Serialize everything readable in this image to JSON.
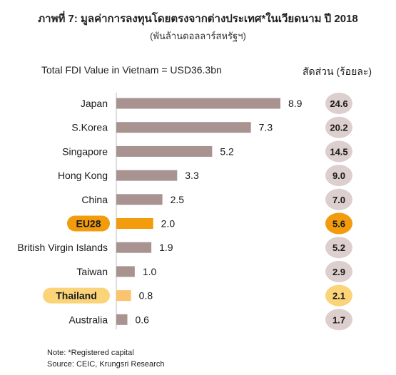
{
  "header": {
    "title": "ภาพที่ 7: มูลค่าการลงทุนโดยตรงจากต่างประเทศ*ในเวียดนาม ปี 2018",
    "subtitle": "(พันล้านดอลลาร์สหรัฐฯ)",
    "total_label": "Total FDI Value in Vietnam = USD36.3bn",
    "share_header": "สัดส่วน (ร้อยละ)"
  },
  "notes": {
    "note": "Note: *Registered capital",
    "source": "Source: CEIC, Krungsri Research"
  },
  "colors": {
    "bar_default": "#a89391",
    "bar_eu": "#f29b0c",
    "bar_thailand": "#fac46e",
    "share_default": "#dccfcd",
    "share_eu": "#f29b0c",
    "share_thailand": "#fbd47a",
    "label_eu_bg": "#f29b0c",
    "label_thailand_bg": "#fbd47a"
  },
  "chart_data": {
    "type": "bar",
    "orientation": "horizontal",
    "categories": [
      "Japan",
      "S.Korea",
      "Singapore",
      "Hong Kong",
      "China",
      "EU28",
      "British Virgin Islands",
      "Taiwan",
      "Thailand",
      "Australia"
    ],
    "values": [
      8.9,
      7.3,
      5.2,
      3.3,
      2.5,
      2.0,
      1.9,
      1.0,
      0.8,
      0.6
    ],
    "value_labels": [
      "8.9",
      "7.3",
      "5.2",
      "3.3",
      "2.5",
      "2.0",
      "1.9",
      "1.0",
      "0.8",
      "0.6"
    ],
    "shares": [
      "24.6",
      "20.2",
      "14.5",
      "9.0",
      "7.0",
      "5.6",
      "5.2",
      "2.9",
      "2.1",
      "1.7"
    ],
    "highlight": [
      "none",
      "none",
      "none",
      "none",
      "none",
      "eu",
      "none",
      "none",
      "thailand",
      "none"
    ],
    "xlim": [
      0,
      8.9
    ],
    "grid": false,
    "legend": "none"
  }
}
